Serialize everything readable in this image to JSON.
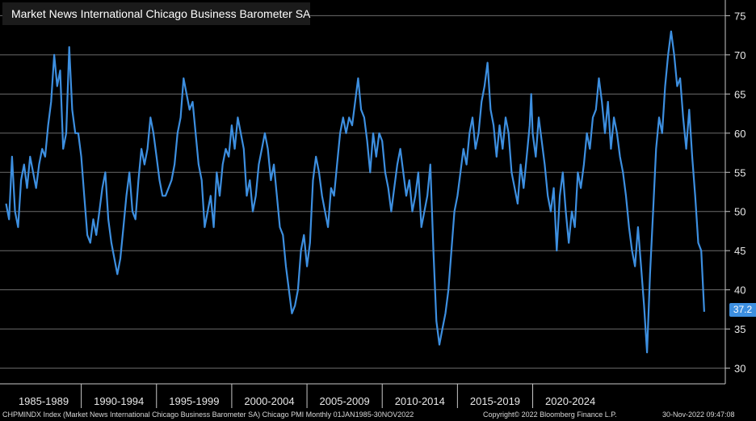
{
  "chart_data": {
    "type": "line",
    "title": "Market News International Chicago Business Barometer SA",
    "series": [
      {
        "name": "Market News International Chicago Business Barometer SA",
        "color": "#3d8fe0",
        "points": [
          [
            1985.0,
            51
          ],
          [
            1985.2,
            49
          ],
          [
            1985.4,
            57
          ],
          [
            1985.6,
            50
          ],
          [
            1985.8,
            48
          ],
          [
            1986.0,
            54
          ],
          [
            1986.2,
            56
          ],
          [
            1986.4,
            53
          ],
          [
            1986.6,
            57
          ],
          [
            1986.8,
            55
          ],
          [
            1987.0,
            53
          ],
          [
            1987.2,
            56
          ],
          [
            1987.4,
            58
          ],
          [
            1987.6,
            57
          ],
          [
            1987.8,
            61
          ],
          [
            1988.0,
            64
          ],
          [
            1988.2,
            70
          ],
          [
            1988.4,
            66
          ],
          [
            1988.6,
            68
          ],
          [
            1988.8,
            58
          ],
          [
            1989.0,
            60
          ],
          [
            1989.2,
            71
          ],
          [
            1989.4,
            63
          ],
          [
            1989.6,
            60
          ],
          [
            1989.8,
            60
          ],
          [
            1990.0,
            57
          ],
          [
            1990.2,
            52
          ],
          [
            1990.4,
            47
          ],
          [
            1990.6,
            46
          ],
          [
            1990.8,
            49
          ],
          [
            1991.0,
            47
          ],
          [
            1991.2,
            50
          ],
          [
            1991.4,
            53
          ],
          [
            1991.6,
            55
          ],
          [
            1991.8,
            49
          ],
          [
            1992.0,
            46
          ],
          [
            1992.2,
            44
          ],
          [
            1992.4,
            42
          ],
          [
            1992.6,
            44
          ],
          [
            1992.8,
            48
          ],
          [
            1993.0,
            52
          ],
          [
            1993.2,
            55
          ],
          [
            1993.4,
            50
          ],
          [
            1993.6,
            49
          ],
          [
            1993.8,
            54
          ],
          [
            1994.0,
            58
          ],
          [
            1994.2,
            56
          ],
          [
            1994.4,
            58
          ],
          [
            1994.6,
            62
          ],
          [
            1994.8,
            60
          ],
          [
            1995.0,
            57
          ],
          [
            1995.2,
            54
          ],
          [
            1995.4,
            52
          ],
          [
            1995.6,
            52
          ],
          [
            1995.8,
            53
          ],
          [
            1996.0,
            54
          ],
          [
            1996.2,
            56
          ],
          [
            1996.4,
            60
          ],
          [
            1996.6,
            62
          ],
          [
            1996.8,
            67
          ],
          [
            1997.0,
            65
          ],
          [
            1997.2,
            63
          ],
          [
            1997.4,
            64
          ],
          [
            1997.6,
            60
          ],
          [
            1997.8,
            56
          ],
          [
            1998.0,
            54
          ],
          [
            1998.2,
            48
          ],
          [
            1998.4,
            50
          ],
          [
            1998.6,
            52
          ],
          [
            1998.8,
            48
          ],
          [
            1999.0,
            55
          ],
          [
            1999.2,
            52
          ],
          [
            1999.4,
            56
          ],
          [
            1999.6,
            58
          ],
          [
            1999.8,
            57
          ],
          [
            2000.0,
            61
          ],
          [
            2000.2,
            58
          ],
          [
            2000.4,
            62
          ],
          [
            2000.6,
            60
          ],
          [
            2000.8,
            58
          ],
          [
            2001.0,
            52
          ],
          [
            2001.2,
            54
          ],
          [
            2001.4,
            50
          ],
          [
            2001.6,
            52
          ],
          [
            2001.8,
            56
          ],
          [
            2002.0,
            58
          ],
          [
            2002.2,
            60
          ],
          [
            2002.4,
            58
          ],
          [
            2002.6,
            54
          ],
          [
            2002.8,
            56
          ],
          [
            2003.0,
            52
          ],
          [
            2003.2,
            48
          ],
          [
            2003.4,
            47
          ],
          [
            2003.6,
            43
          ],
          [
            2003.8,
            40
          ],
          [
            2004.0,
            37
          ],
          [
            2004.2,
            38
          ],
          [
            2004.4,
            40
          ],
          [
            2004.6,
            45
          ],
          [
            2004.8,
            47
          ],
          [
            2005.0,
            43
          ],
          [
            2005.2,
            46
          ],
          [
            2005.4,
            54
          ],
          [
            2005.6,
            57
          ],
          [
            2005.8,
            55
          ],
          [
            2006.0,
            52
          ],
          [
            2006.2,
            50
          ],
          [
            2006.4,
            48
          ],
          [
            2006.6,
            53
          ],
          [
            2006.8,
            52
          ],
          [
            2007.0,
            56
          ],
          [
            2007.2,
            60
          ],
          [
            2007.4,
            62
          ],
          [
            2007.6,
            60
          ],
          [
            2007.8,
            62
          ],
          [
            2008.0,
            61
          ],
          [
            2008.2,
            64
          ],
          [
            2008.4,
            67
          ],
          [
            2008.6,
            63
          ],
          [
            2008.8,
            62
          ],
          [
            2009.0,
            59
          ],
          [
            2009.2,
            55
          ],
          [
            2009.4,
            60
          ],
          [
            2009.6,
            57
          ],
          [
            2009.8,
            60
          ],
          [
            2010.0,
            59
          ],
          [
            2010.2,
            55
          ],
          [
            2010.4,
            53
          ],
          [
            2010.6,
            50
          ],
          [
            2010.8,
            53
          ],
          [
            2011.0,
            56
          ],
          [
            2011.2,
            58
          ],
          [
            2011.4,
            55
          ],
          [
            2011.6,
            52
          ],
          [
            2011.8,
            54
          ],
          [
            2012.0,
            50
          ],
          [
            2012.2,
            52
          ],
          [
            2012.4,
            55
          ],
          [
            2012.6,
            48
          ],
          [
            2012.8,
            50
          ],
          [
            2013.0,
            52
          ],
          [
            2013.2,
            56
          ],
          [
            2013.4,
            45
          ],
          [
            2013.6,
            36
          ],
          [
            2013.8,
            33
          ],
          [
            2014.0,
            35
          ],
          [
            2014.2,
            37
          ],
          [
            2014.4,
            40
          ],
          [
            2014.6,
            45
          ],
          [
            2014.8,
            50
          ],
          [
            2015.0,
            52
          ],
          [
            2015.2,
            55
          ],
          [
            2015.4,
            58
          ],
          [
            2015.6,
            56
          ],
          [
            2015.8,
            60
          ],
          [
            2016.0,
            62
          ],
          [
            2016.2,
            58
          ],
          [
            2016.4,
            60
          ],
          [
            2016.6,
            64
          ],
          [
            2016.8,
            66
          ],
          [
            2017.0,
            69
          ],
          [
            2017.2,
            63
          ],
          [
            2017.4,
            61
          ],
          [
            2017.6,
            57
          ],
          [
            2017.8,
            61
          ],
          [
            2018.0,
            58
          ],
          [
            2018.2,
            62
          ],
          [
            2018.4,
            60
          ],
          [
            2018.6,
            55
          ],
          [
            2018.8,
            53
          ],
          [
            2019.0,
            51
          ],
          [
            2019.2,
            56
          ],
          [
            2019.4,
            53
          ],
          [
            2019.6,
            57
          ],
          [
            2019.8,
            61
          ],
          [
            2019.9,
            65
          ],
          [
            2020.0,
            60
          ],
          [
            2020.2,
            57
          ],
          [
            2020.4,
            62
          ],
          [
            2020.6,
            59
          ],
          [
            2020.8,
            56
          ],
          [
            2021.0,
            52
          ],
          [
            2021.2,
            50
          ],
          [
            2021.4,
            53
          ],
          [
            2021.6,
            45
          ],
          [
            2021.8,
            52
          ],
          [
            2022.0,
            55
          ],
          [
            2022.2,
            50
          ],
          [
            2022.4,
            46
          ],
          [
            2022.6,
            50
          ],
          [
            2022.8,
            48
          ],
          [
            2023.0,
            55
          ],
          [
            2023.2,
            53
          ],
          [
            2023.4,
            56
          ],
          [
            2023.6,
            60
          ],
          [
            2023.8,
            58
          ],
          [
            2024.0,
            62
          ],
          [
            2024.2,
            63
          ],
          [
            2024.4,
            67
          ],
          [
            2024.6,
            64
          ],
          [
            2024.8,
            60
          ],
          [
            2025.0,
            64
          ],
          [
            2025.2,
            58
          ],
          [
            2025.4,
            62
          ],
          [
            2025.6,
            60
          ],
          [
            2025.8,
            57
          ],
          [
            2026.0,
            55
          ],
          [
            2026.2,
            52
          ],
          [
            2026.4,
            48
          ],
          [
            2026.6,
            45
          ],
          [
            2026.8,
            43
          ],
          [
            2027.0,
            48
          ],
          [
            2027.2,
            43
          ],
          [
            2027.4,
            38
          ],
          [
            2027.6,
            32
          ],
          [
            2027.8,
            42
          ],
          [
            2028.0,
            50
          ],
          [
            2028.2,
            58
          ],
          [
            2028.4,
            62
          ],
          [
            2028.6,
            60
          ],
          [
            2028.8,
            66
          ],
          [
            2029.0,
            70
          ],
          [
            2029.2,
            73
          ],
          [
            2029.4,
            70
          ],
          [
            2029.6,
            66
          ],
          [
            2029.8,
            67
          ],
          [
            2030.0,
            62
          ],
          [
            2030.2,
            58
          ],
          [
            2030.4,
            63
          ],
          [
            2030.6,
            57
          ],
          [
            2030.8,
            52
          ],
          [
            2031.0,
            46
          ],
          [
            2031.2,
            45
          ],
          [
            2031.4,
            37.2
          ]
        ]
      }
    ],
    "x_ticks": [
      "1985-1989",
      "1990-1994",
      "1995-1999",
      "2000-2004",
      "2005-2009",
      "2010-2014",
      "2015-2019",
      "2020-2024"
    ],
    "y_ticks": [
      30,
      35,
      40,
      45,
      50,
      55,
      60,
      65,
      70,
      75
    ],
    "ylim": [
      28,
      77
    ],
    "last_value": "37.2",
    "grid": true,
    "legend": "top-left"
  },
  "footer": {
    "left": "CHPMINDX Index (Market News International Chicago Business Barometer SA) Chicago PMI  Monthly 01JAN1985-30NOV2022",
    "center": "Copyright© 2022 Bloomberg Finance L.P.",
    "right": "30-Nov-2022 09:47:08"
  }
}
